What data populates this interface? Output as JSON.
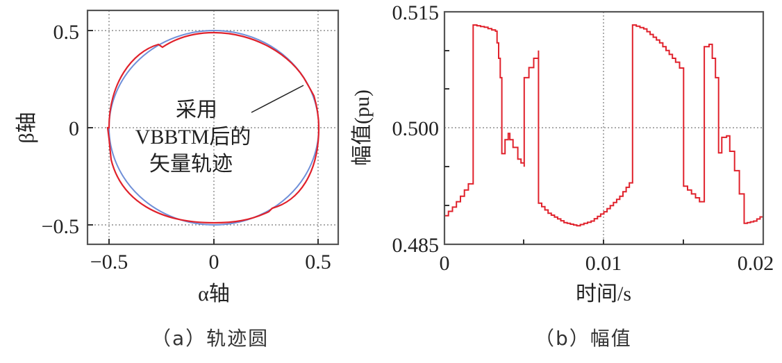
{
  "panels": {
    "a": {
      "caption": "（a）轨迹圆",
      "xlabel": "α轴",
      "ylabel": "β轴",
      "xticks": [
        "−0.5",
        "0",
        "0.5"
      ],
      "yticks": [
        "0.5",
        "0",
        "−0.5"
      ],
      "annotation": [
        "采用",
        "VBBTM后的",
        "矢量轨迹"
      ]
    },
    "b": {
      "caption": "（b）幅值",
      "xlabel": "时间/s",
      "ylabel": "幅值(pu)",
      "xticks": [
        "0",
        "0.01",
        "0.02"
      ],
      "yticks": [
        "0.515",
        "0.500",
        "0.485"
      ]
    }
  },
  "colors": {
    "trace_red": "#e0212b",
    "trace_blue": "#6f8fd8",
    "axis": "#555555",
    "grid": "#666666"
  },
  "chart_data": [
    {
      "type": "scatter",
      "title": "（a）轨迹圆",
      "xlabel": "α轴",
      "ylabel": "β轴",
      "xlim": [
        -0.6,
        0.6
      ],
      "ylim": [
        -0.6,
        0.6
      ],
      "grid": true,
      "series": [
        {
          "name": "reference circle",
          "color": "#6f8fd8",
          "shape": "circle",
          "radius": 0.5
        },
        {
          "name": "采用VBBTM后的矢量轨迹",
          "color": "#e0212b",
          "shape": "near-circle with small steps",
          "radius_range": [
            0.487,
            0.513
          ],
          "step_points": [
            [
              -0.27,
              0.43
            ],
            [
              0.46,
              0.22
            ],
            [
              0.27,
              -0.43
            ],
            [
              -0.5,
              0.0
            ]
          ]
        }
      ],
      "annotation": {
        "text": "采用 VBBTM后的 矢量轨迹",
        "arrow_to": [
          0.44,
          0.22
        ]
      }
    },
    {
      "type": "line",
      "title": "（b）幅值",
      "xlabel": "时间/s",
      "ylabel": "幅值(pu)",
      "xlim": [
        0,
        0.02
      ],
      "ylim": [
        0.485,
        0.515
      ],
      "xticks": [
        0,
        0.01,
        0.02
      ],
      "yticks": [
        0.485,
        0.5,
        0.515
      ],
      "grid": "dotted at x=0.01 and y=0.500",
      "series": [
        {
          "name": "amplitude",
          "color": "#e0212b",
          "x": [
            0,
            0.0005,
            0.001,
            0.0015,
            0.0018,
            0.0018,
            0.0025,
            0.0032,
            0.0033,
            0.0034,
            0.0035,
            0.0036,
            0.0036,
            0.0038,
            0.004,
            0.0041,
            0.0043,
            0.0046,
            0.005,
            0.005,
            0.0053,
            0.0056,
            0.0059,
            0.0059,
            0.0065,
            0.0075,
            0.0083,
            0.0092,
            0.01,
            0.011,
            0.0118,
            0.0118,
            0.0125,
            0.0135,
            0.0145,
            0.015,
            0.015,
            0.0155,
            0.016,
            0.0163,
            0.0163,
            0.0166,
            0.0168,
            0.017,
            0.0172,
            0.0172,
            0.0174,
            0.0177,
            0.0179,
            0.0182,
            0.0185,
            0.0188,
            0.0194,
            0.02
          ],
          "y": [
            0.4887,
            0.4898,
            0.4912,
            0.4928,
            0.4935,
            0.5133,
            0.513,
            0.5125,
            0.511,
            0.509,
            0.5065,
            0.5045,
            0.4967,
            0.4985,
            0.4993,
            0.4985,
            0.4975,
            0.496,
            0.495,
            0.5065,
            0.5078,
            0.509,
            0.51,
            0.4903,
            0.489,
            0.4878,
            0.4874,
            0.488,
            0.4892,
            0.4912,
            0.4935,
            0.5133,
            0.5128,
            0.511,
            0.5085,
            0.507,
            0.4925,
            0.4915,
            0.4905,
            0.4907,
            0.5105,
            0.5108,
            0.509,
            0.5065,
            0.504,
            0.4968,
            0.4988,
            0.499,
            0.497,
            0.4945,
            0.4915,
            0.4877,
            0.488,
            0.4888
          ]
        }
      ]
    }
  ]
}
